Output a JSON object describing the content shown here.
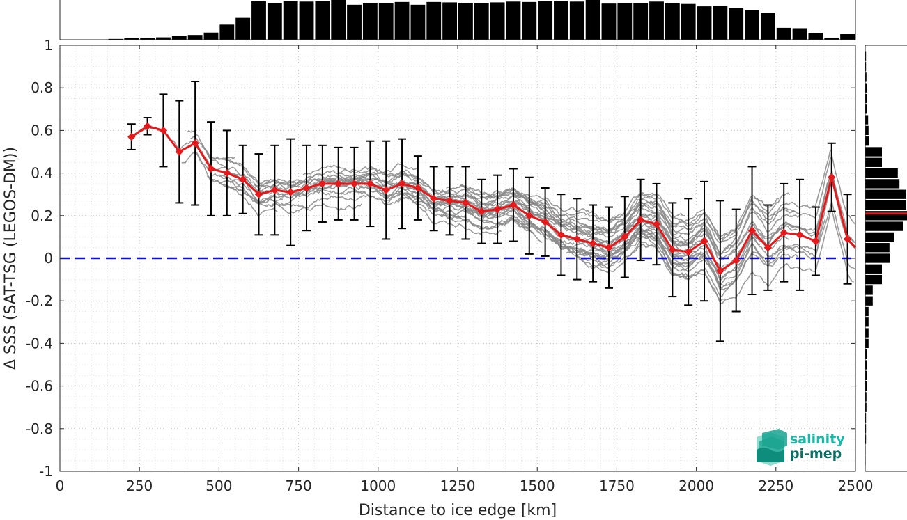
{
  "chart_data": {
    "type": "line",
    "xlabel": "Distance to ice edge [km]",
    "ylabel": "Δ SSS (SAT-TSG (LEGOS-DM))",
    "xlim": [
      0,
      2500
    ],
    "ylim": [
      -1,
      1
    ],
    "x_ticks": [
      "0",
      "250",
      "500",
      "750",
      "1000",
      "1250",
      "1500",
      "1750",
      "2000",
      "2250",
      "2500"
    ],
    "y_ticks": [
      "1",
      "0.8",
      "0.6",
      "0.4",
      "0.2",
      "0",
      "-0.2",
      "-0.4",
      "-0.6",
      "-0.8",
      "-1"
    ],
    "grid": true,
    "reference_line": {
      "y": 0,
      "style": "dashed",
      "color": "#1010d0"
    },
    "series": [
      {
        "marker": "diamond",
        "color": "#e41a1c",
        "x": [
          225,
          275,
          325,
          375,
          425,
          475,
          525,
          575,
          625,
          675,
          725,
          775,
          825,
          875,
          925,
          975,
          1025,
          1075,
          1125,
          1175,
          1225,
          1275,
          1325,
          1375,
          1425,
          1475,
          1525,
          1575,
          1625,
          1675,
          1725,
          1775,
          1825,
          1875,
          1925,
          1975,
          2025,
          2075,
          2125,
          2175,
          2225,
          2275,
          2325,
          2375,
          2425,
          2475,
          2500
        ],
        "y": [
          0.57,
          0.62,
          0.6,
          0.5,
          0.54,
          0.42,
          0.4,
          0.37,
          0.3,
          0.32,
          0.31,
          0.33,
          0.35,
          0.35,
          0.35,
          0.35,
          0.32,
          0.35,
          0.33,
          0.28,
          0.27,
          0.26,
          0.22,
          0.23,
          0.25,
          0.2,
          0.17,
          0.11,
          0.09,
          0.07,
          0.05,
          0.1,
          0.18,
          0.16,
          0.04,
          0.03,
          0.08,
          -0.06,
          -0.01,
          0.13,
          0.05,
          0.12,
          0.11,
          0.08,
          0.38,
          0.09,
          0.05
        ],
        "error": [
          0.06,
          0.04,
          0.17,
          0.24,
          0.29,
          0.22,
          0.2,
          0.16,
          0.19,
          0.21,
          0.25,
          0.2,
          0.18,
          0.17,
          0.17,
          0.2,
          0.23,
          0.21,
          0.15,
          0.15,
          0.16,
          0.17,
          0.15,
          0.16,
          0.17,
          0.18,
          0.16,
          0.19,
          0.19,
          0.18,
          0.19,
          0.19,
          0.19,
          0.19,
          0.22,
          0.25,
          0.28,
          0.33,
          0.24,
          0.3,
          0.2,
          0.23,
          0.26,
          0.16,
          0.16,
          0.21,
          0
        ]
      }
    ],
    "top_histogram": {
      "bin_centers": [
        25,
        75,
        125,
        175,
        225,
        275,
        325,
        375,
        425,
        475,
        525,
        575,
        625,
        675,
        725,
        775,
        825,
        875,
        925,
        975,
        1025,
        1075,
        1125,
        1175,
        1225,
        1275,
        1325,
        1375,
        1425,
        1475,
        1525,
        1575,
        1625,
        1675,
        1725,
        1775,
        1825,
        1875,
        1925,
        1975,
        2025,
        2075,
        2125,
        2175,
        2225,
        2275,
        2325,
        2375,
        2425,
        2475
      ],
      "relative_counts": [
        0,
        0,
        0,
        0.02,
        0.04,
        0.04,
        0.06,
        0.1,
        0.12,
        0.18,
        0.38,
        0.55,
        0.97,
        0.93,
        0.97,
        0.96,
        0.97,
        1.0,
        0.88,
        0.93,
        0.92,
        0.95,
        0.88,
        0.95,
        0.94,
        0.93,
        0.92,
        0.94,
        0.96,
        0.95,
        0.97,
        0.98,
        0.96,
        1.0,
        0.91,
        0.93,
        0.93,
        0.96,
        0.93,
        0.9,
        0.84,
        0.86,
        0.8,
        0.74,
        0.68,
        0.3,
        0.29,
        0.17,
        0.04,
        0.14
      ]
    },
    "right_histogram": {
      "bin_centers": [
        0.95,
        0.9,
        0.85,
        0.8,
        0.75,
        0.7,
        0.65,
        0.6,
        0.55,
        0.5,
        0.45,
        0.4,
        0.35,
        0.3,
        0.25,
        0.2,
        0.15,
        0.1,
        0.05,
        0,
        -0.05,
        -0.1,
        -0.15,
        -0.2,
        -0.25,
        -0.3,
        -0.35,
        -0.4,
        -0.45,
        -0.5,
        -0.55,
        -0.6,
        -0.65,
        -0.7,
        -0.75,
        -0.8,
        -0.85,
        -0.9,
        -0.95
      ],
      "relative_counts": [
        0.02,
        0.02,
        0.03,
        0.04,
        0.05,
        0.05,
        0.07,
        0.08,
        0.1,
        0.4,
        0.4,
        0.78,
        0.82,
        0.98,
        0.98,
        1.0,
        0.9,
        0.7,
        0.58,
        0.6,
        0.4,
        0.4,
        0.18,
        0.18,
        0.08,
        0.08,
        0.08,
        0.08,
        0.05,
        0.05,
        0.04,
        0.04,
        0.03,
        0.03,
        0.02,
        0.02,
        0.02,
        0.01,
        0.01
      ],
      "median": 0.21,
      "median_color": "#e41a1c"
    }
  },
  "logo": {
    "line1": "salinity",
    "line2": "pi-mep",
    "color1": "#17b9a7",
    "color2": "#0c6e63"
  }
}
